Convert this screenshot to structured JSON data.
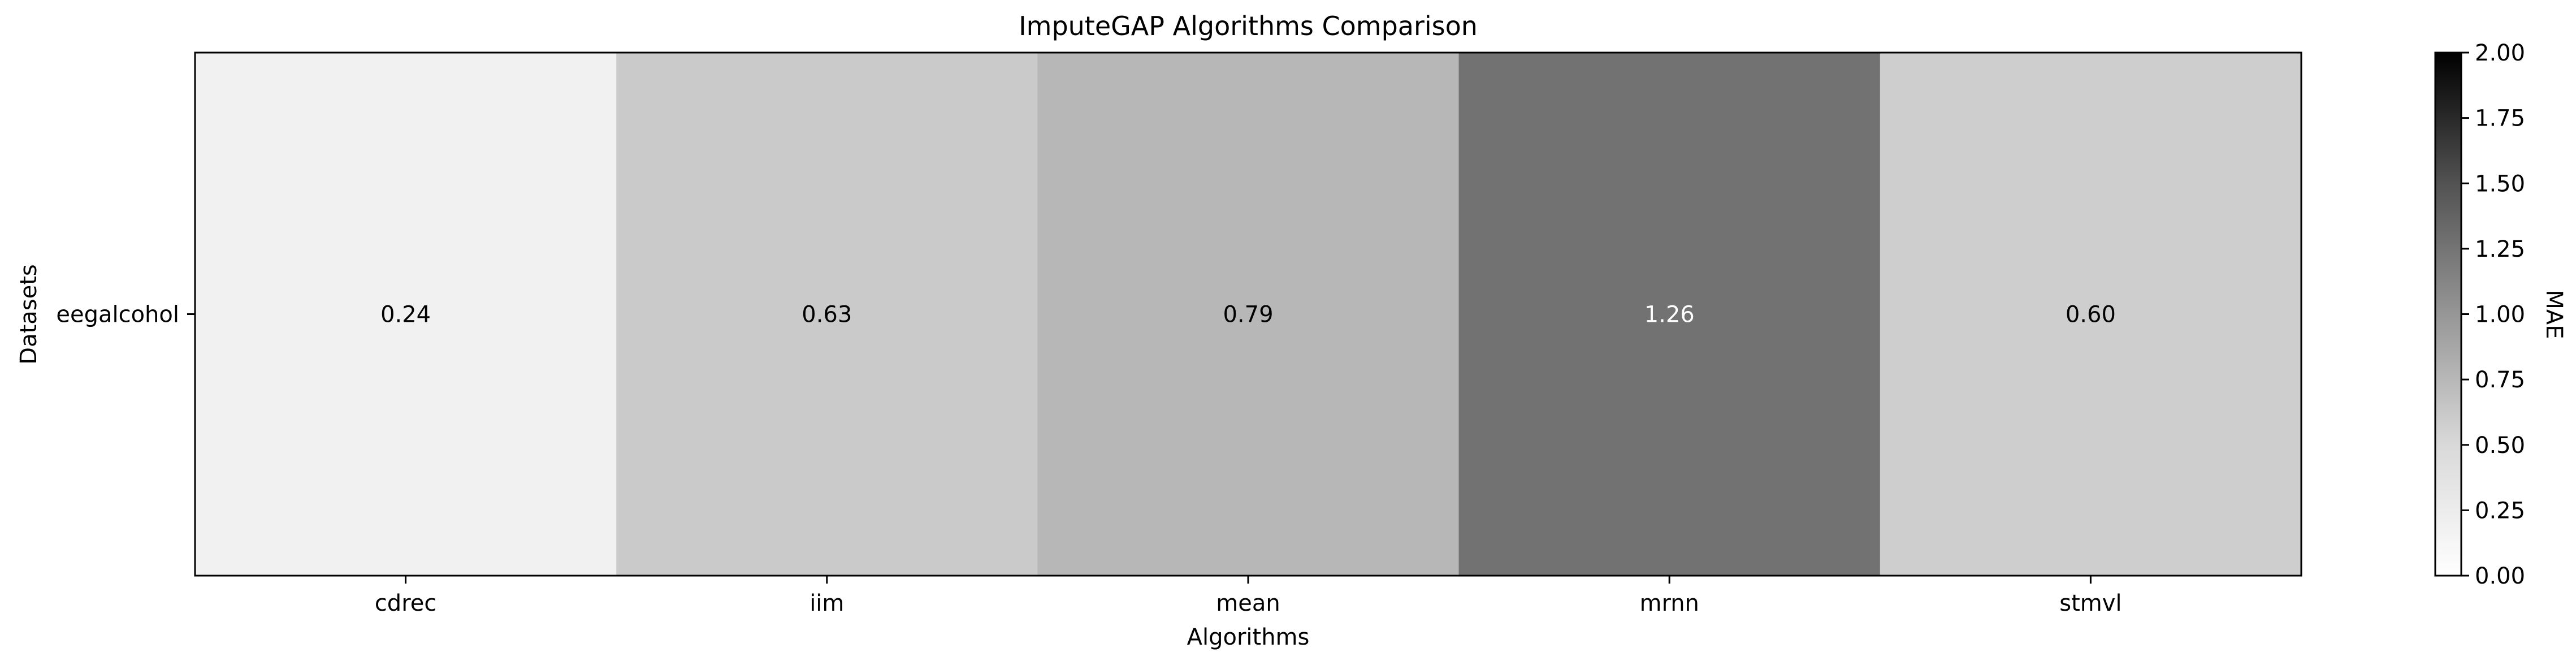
{
  "chart_data": {
    "type": "heatmap",
    "title": "ImputeGAP Algorithms Comparison",
    "xlabel": "Algorithms",
    "ylabel": "Datasets",
    "x_categories": [
      "cdrec",
      "iim",
      "mean",
      "mrnn",
      "stmvl"
    ],
    "y_categories": [
      "eegalcohol"
    ],
    "values": [
      [
        0.24,
        0.63,
        0.79,
        1.26,
        0.6
      ]
    ],
    "value_labels": [
      [
        "0.24",
        "0.63",
        "0.79",
        "1.26",
        "0.60"
      ]
    ],
    "colormap": "Greys",
    "vmin": 0,
    "vmax": 2,
    "colorbar": {
      "label": "MAE",
      "ticks": [
        0,
        0.25,
        0.5,
        0.75,
        1,
        1.25,
        1.5,
        1.75,
        2
      ],
      "tick_labels": [
        "0.00",
        "0.25",
        "0.50",
        "0.75",
        "1.00",
        "1.25",
        "1.50",
        "1.75",
        "2.00"
      ]
    },
    "grid": false
  }
}
